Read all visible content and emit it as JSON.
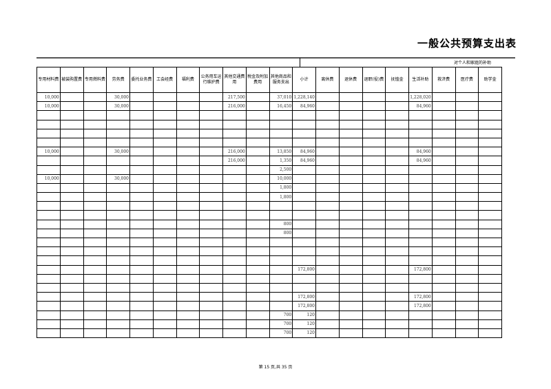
{
  "title": "一般公共预算支出表",
  "group_header": "对个人和家庭的补助",
  "columns": [
    "专用材料费",
    "被装购置费",
    "专用燃料费",
    "劳务费",
    "委托业务费",
    "工会经费",
    "福利费",
    "公务用车运行维护费",
    "其他交通费用",
    "税金及附加费用",
    "其他商品和服务支出",
    "小计",
    "离休费",
    "退休费",
    "退职(役)费",
    "抚恤金",
    "生活补助",
    "救济费",
    "医疗费",
    "助学金"
  ],
  "rows": [
    [
      "10,000",
      "",
      "",
      "30,000",
      "",
      "",
      "",
      "",
      "217,500",
      "",
      "37,010",
      "1,228,140",
      "",
      "",
      "",
      "",
      "1,228,020",
      "",
      "",
      ""
    ],
    [
      "10,000",
      "",
      "",
      "30,000",
      "",
      "",
      "",
      "",
      "216,000",
      "",
      "16,450",
      "84,960",
      "",
      "",
      "",
      "",
      "84,960",
      "",
      "",
      ""
    ],
    [
      "",
      "",
      "",
      "",
      "",
      "",
      "",
      "",
      "",
      "",
      "",
      "",
      "",
      "",
      "",
      "",
      "",
      "",
      "",
      ""
    ],
    [
      "",
      "",
      "",
      "",
      "",
      "",
      "",
      "",
      "",
      "",
      "",
      "",
      "",
      "",
      "",
      "",
      "",
      "",
      "",
      ""
    ],
    [
      "",
      "",
      "",
      "",
      "",
      "",
      "",
      "",
      "",
      "",
      "",
      "",
      "",
      "",
      "",
      "",
      "",
      "",
      "",
      ""
    ],
    [
      "",
      "",
      "",
      "",
      "",
      "",
      "",
      "",
      "",
      "",
      "",
      "",
      "",
      "",
      "",
      "",
      "",
      "",
      "",
      ""
    ],
    [
      "10,000",
      "",
      "",
      "30,000",
      "",
      "",
      "",
      "",
      "216,000",
      "",
      "13,850",
      "84,960",
      "",
      "",
      "",
      "",
      "84,960",
      "",
      "",
      ""
    ],
    [
      "",
      "",
      "",
      "",
      "",
      "",
      "",
      "",
      "216,000",
      "",
      "1,350",
      "84,960",
      "",
      "",
      "",
      "",
      "84,960",
      "",
      "",
      ""
    ],
    [
      "",
      "",
      "",
      "",
      "",
      "",
      "",
      "",
      "",
      "",
      "2,500",
      "",
      "",
      "",
      "",
      "",
      "",
      "",
      "",
      ""
    ],
    [
      "10,000",
      "",
      "",
      "30,000",
      "",
      "",
      "",
      "",
      "",
      "",
      "10,000",
      "",
      "",
      "",
      "",
      "",
      "",
      "",
      "",
      ""
    ],
    [
      "",
      "",
      "",
      "",
      "",
      "",
      "",
      "",
      "",
      "",
      "1,800",
      "",
      "",
      "",
      "",
      "",
      "",
      "",
      "",
      ""
    ],
    [
      "",
      "",
      "",
      "",
      "",
      "",
      "",
      "",
      "",
      "",
      "1,800",
      "",
      "",
      "",
      "",
      "",
      "",
      "",
      "",
      ""
    ],
    [
      "",
      "",
      "",
      "",
      "",
      "",
      "",
      "",
      "",
      "",
      "",
      "",
      "",
      "",
      "",
      "",
      "",
      "",
      "",
      ""
    ],
    [
      "",
      "",
      "",
      "",
      "",
      "",
      "",
      "",
      "",
      "",
      "",
      "",
      "",
      "",
      "",
      "",
      "",
      "",
      "",
      ""
    ],
    [
      "",
      "",
      "",
      "",
      "",
      "",
      "",
      "",
      "",
      "",
      "800",
      "",
      "",
      "",
      "",
      "",
      "",
      "",
      "",
      ""
    ],
    [
      "",
      "",
      "",
      "",
      "",
      "",
      "",
      "",
      "",
      "",
      "800",
      "",
      "",
      "",
      "",
      "",
      "",
      "",
      "",
      ""
    ],
    [
      "",
      "",
      "",
      "",
      "",
      "",
      "",
      "",
      "",
      "",
      "",
      "",
      "",
      "",
      "",
      "",
      "",
      "",
      "",
      ""
    ],
    [
      "",
      "",
      "",
      "",
      "",
      "",
      "",
      "",
      "",
      "",
      "",
      "",
      "",
      "",
      "",
      "",
      "",
      "",
      "",
      ""
    ],
    [
      "",
      "",
      "",
      "",
      "",
      "",
      "",
      "",
      "",
      "",
      "",
      "",
      "",
      "",
      "",
      "",
      "",
      "",
      "",
      ""
    ],
    [
      "",
      "",
      "",
      "",
      "",
      "",
      "",
      "",
      "",
      "",
      "",
      "172,800",
      "",
      "",
      "",
      "",
      "172,800",
      "",
      "",
      ""
    ],
    [
      "",
      "",
      "",
      "",
      "",
      "",
      "",
      "",
      "",
      "",
      "",
      "",
      "",
      "",
      "",
      "",
      "",
      "",
      "",
      ""
    ],
    [
      "",
      "",
      "",
      "",
      "",
      "",
      "",
      "",
      "",
      "",
      "",
      "",
      "",
      "",
      "",
      "",
      "",
      "",
      "",
      ""
    ],
    [
      "",
      "",
      "",
      "",
      "",
      "",
      "",
      "",
      "",
      "",
      "",
      "172,800",
      "",
      "",
      "",
      "",
      "172,800",
      "",
      "",
      ""
    ],
    [
      "",
      "",
      "",
      "",
      "",
      "",
      "",
      "",
      "",
      "",
      "",
      "172,800",
      "",
      "",
      "",
      "",
      "172,800",
      "",
      "",
      ""
    ],
    [
      "",
      "",
      "",
      "",
      "",
      "",
      "",
      "",
      "",
      "",
      "700",
      "120",
      "",
      "",
      "",
      "",
      "",
      "",
      "",
      ""
    ],
    [
      "",
      "",
      "",
      "",
      "",
      "",
      "",
      "",
      "",
      "",
      "700",
      "120",
      "",
      "",
      "",
      "",
      "",
      "",
      "",
      ""
    ],
    [
      "",
      "",
      "",
      "",
      "",
      "",
      "",
      "",
      "",
      "",
      "700",
      "120",
      "",
      "",
      "",
      "",
      "",
      "",
      "",
      ""
    ]
  ],
  "footer": "第 15 页,共 35 页"
}
